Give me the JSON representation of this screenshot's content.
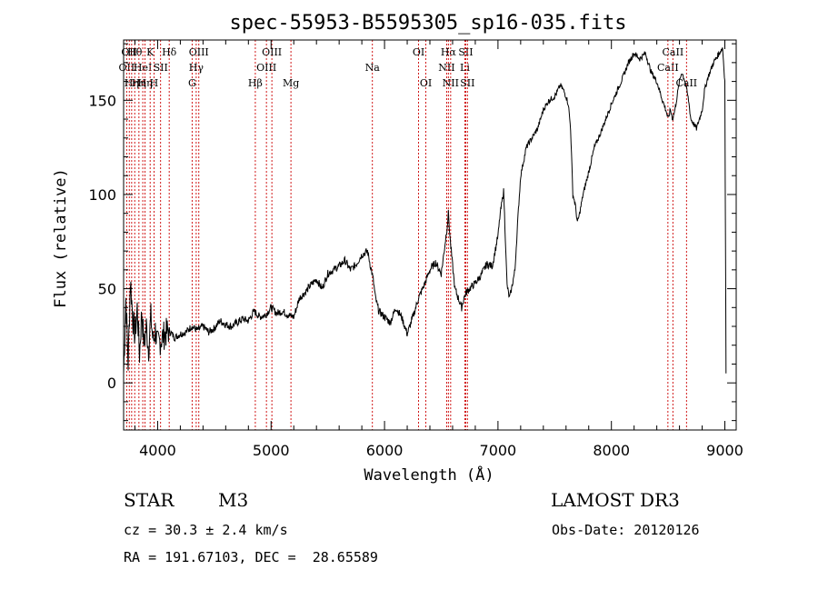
{
  "chart_data": {
    "type": "line",
    "title": "spec-55953-B5595305_sp16-035.fits",
    "xlabel": "Wavelength (Å)",
    "ylabel": "Flux (relative)",
    "xlim": [
      3700,
      9100
    ],
    "ylim": [
      -25,
      182
    ],
    "xticks": [
      4000,
      5000,
      6000,
      7000,
      8000,
      9000
    ],
    "yticks": [
      0,
      50,
      100,
      150
    ],
    "series": [
      {
        "name": "spectrum",
        "x": [
          3700,
          3720,
          3740,
          3760,
          3780,
          3800,
          3820,
          3840,
          3860,
          3880,
          3900,
          3920,
          3940,
          3960,
          3980,
          4000,
          4050,
          4100,
          4150,
          4200,
          4250,
          4300,
          4350,
          4400,
          4450,
          4500,
          4550,
          4600,
          4650,
          4700,
          4750,
          4800,
          4850,
          4900,
          4950,
          5000,
          5050,
          5100,
          5150,
          5200,
          5250,
          5300,
          5350,
          5400,
          5450,
          5500,
          5550,
          5600,
          5650,
          5700,
          5750,
          5800,
          5850,
          5900,
          5920,
          5950,
          6000,
          6050,
          6100,
          6150,
          6200,
          6250,
          6300,
          6350,
          6400,
          6450,
          6500,
          6530,
          6550,
          6563,
          6580,
          6600,
          6620,
          6650,
          6680,
          6700,
          6720,
          6750,
          6800,
          6850,
          6900,
          6950,
          7000,
          7020,
          7050,
          7080,
          7100,
          7120,
          7150,
          7180,
          7200,
          7250,
          7300,
          7350,
          7400,
          7450,
          7500,
          7550,
          7580,
          7600,
          7620,
          7640,
          7660,
          7680,
          7700,
          7720,
          7750,
          7800,
          7850,
          7900,
          7950,
          8000,
          8050,
          8100,
          8150,
          8200,
          8250,
          8300,
          8350,
          8400,
          8450,
          8480,
          8500,
          8520,
          8540,
          8560,
          8600,
          8620,
          8650,
          8680,
          8700,
          8750,
          8800,
          8820,
          8850,
          8900,
          8950,
          8980,
          9000,
          9010
        ],
        "values": [
          5,
          45,
          10,
          55,
          35,
          25,
          40,
          15,
          38,
          20,
          30,
          18,
          35,
          22,
          28,
          20,
          25,
          28,
          24,
          26,
          27,
          30,
          28,
          30,
          27,
          29,
          33,
          31,
          30,
          32,
          34,
          33,
          38,
          35,
          36,
          40,
          37,
          38,
          36,
          35,
          45,
          48,
          52,
          55,
          50,
          58,
          60,
          62,
          65,
          60,
          63,
          68,
          70,
          55,
          45,
          38,
          35,
          32,
          40,
          35,
          26,
          35,
          45,
          52,
          60,
          64,
          58,
          72,
          82,
          90,
          75,
          62,
          50,
          45,
          40,
          45,
          48,
          50,
          53,
          57,
          63,
          62,
          78,
          90,
          102,
          52,
          45,
          50,
          60,
          92,
          110,
          125,
          130,
          135,
          145,
          150,
          152,
          158,
          155,
          152,
          148,
          135,
          100,
          95,
          85,
          90,
          100,
          112,
          125,
          132,
          140,
          148,
          155,
          162,
          170,
          175,
          172,
          175,
          165,
          160,
          150,
          145,
          140,
          145,
          140,
          145,
          160,
          165,
          160,
          150,
          140,
          135,
          145,
          155,
          162,
          170,
          175,
          178,
          160,
          5
        ]
      }
    ],
    "line_markers": [
      {
        "wl": 3727,
        "tier": 2,
        "name": "OII"
      },
      {
        "wl": 3750,
        "tier": 1,
        "name": "OII"
      },
      {
        "wl": 3771,
        "tier": 3,
        "name": "Hη"
      },
      {
        "wl": 3798,
        "tier": 1,
        "name": "Hθ"
      },
      {
        "wl": 3835,
        "tier": 3,
        "name": "Hη"
      },
      {
        "wl": 3869,
        "tier": 2,
        "name": "HeI"
      },
      {
        "wl": 3889,
        "tier": 3,
        "name": "Hη"
      },
      {
        "wl": 3934,
        "tier": 1,
        "name": "K"
      },
      {
        "wl": 3968,
        "tier": 3,
        "name": "H"
      },
      {
        "wl": 4026,
        "tier": 2,
        "name": "SII"
      },
      {
        "wl": 4102,
        "tier": 1,
        "name": "Hδ"
      },
      {
        "wl": 4304,
        "tier": 3,
        "name": "G"
      },
      {
        "wl": 4340,
        "tier": 2,
        "name": "Hγ"
      },
      {
        "wl": 4363,
        "tier": 1,
        "name": "OIII"
      },
      {
        "wl": 4861,
        "tier": 3,
        "name": "Hβ"
      },
      {
        "wl": 4959,
        "tier": 2,
        "name": "OIII"
      },
      {
        "wl": 5007,
        "tier": 1,
        "name": "OIII"
      },
      {
        "wl": 5175,
        "tier": 3,
        "name": "Mg"
      },
      {
        "wl": 5893,
        "tier": 2,
        "name": "Na"
      },
      {
        "wl": 6300,
        "tier": 1,
        "name": "OI"
      },
      {
        "wl": 6364,
        "tier": 3,
        "name": "OI"
      },
      {
        "wl": 6548,
        "tier": 2,
        "name": "NII"
      },
      {
        "wl": 6563,
        "tier": 1,
        "name": "Hα"
      },
      {
        "wl": 6583,
        "tier": 3,
        "name": "NII"
      },
      {
        "wl": 6708,
        "tier": 2,
        "name": "Li"
      },
      {
        "wl": 6716,
        "tier": 1,
        "name": "SII"
      },
      {
        "wl": 6731,
        "tier": 3,
        "name": "SII"
      },
      {
        "wl": 8498,
        "tier": 2,
        "name": "CaII"
      },
      {
        "wl": 8542,
        "tier": 1,
        "name": "CaII"
      },
      {
        "wl": 8662,
        "tier": 3,
        "name": "CaII"
      }
    ]
  },
  "info": {
    "class": "STAR",
    "subclass": "M3",
    "survey": "LAMOST DR3",
    "cz": "cz = 30.3 ± 2.4 km/s",
    "obs_date": "Obs-Date: 20120126",
    "coords": "RA = 191.67103, DEC =  28.65589"
  },
  "colors": {
    "marker": "#cc0000",
    "ink": "#000000"
  }
}
